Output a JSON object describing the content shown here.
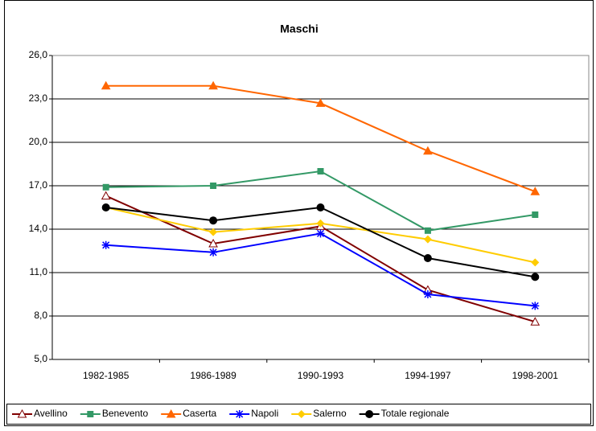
{
  "chart_data": {
    "type": "line",
    "title": "Maschi",
    "categories": [
      "1982-1985",
      "1986-1989",
      "1990-1993",
      "1994-1997",
      "1998-2001"
    ],
    "ylim": [
      5,
      26
    ],
    "yticks": [
      {
        "value": 5,
        "label": "5,0"
      },
      {
        "value": 8,
        "label": "8,0"
      },
      {
        "value": 11,
        "label": "11,0"
      },
      {
        "value": 14,
        "label": "14,0"
      },
      {
        "value": 17,
        "label": "17,0"
      },
      {
        "value": 20,
        "label": "20,0"
      },
      {
        "value": 23,
        "label": "23,0"
      },
      {
        "value": 26,
        "label": "26,0"
      }
    ],
    "grid": true,
    "legend": "bottom",
    "series": [
      {
        "name": "Avellino",
        "color": "#800000",
        "marker": "triangle-open",
        "values": [
          16.3,
          13.0,
          14.2,
          9.8,
          7.6
        ]
      },
      {
        "name": "Benevento",
        "color": "#339966",
        "marker": "square",
        "values": [
          16.9,
          17.0,
          18.0,
          13.9,
          15.0
        ]
      },
      {
        "name": "Caserta",
        "color": "#ff6600",
        "marker": "triangle",
        "values": [
          23.9,
          23.9,
          22.7,
          19.4,
          16.6
        ]
      },
      {
        "name": "Napoli",
        "color": "#0000ff",
        "marker": "star",
        "values": [
          12.9,
          12.4,
          13.7,
          9.5,
          8.7
        ]
      },
      {
        "name": "Salerno",
        "color": "#ffcc00",
        "marker": "diamond",
        "values": [
          15.5,
          13.8,
          14.4,
          13.3,
          11.7
        ]
      },
      {
        "name": "Totale regionale",
        "color": "#000000",
        "marker": "circle",
        "values": [
          15.5,
          14.6,
          15.5,
          12.0,
          10.7
        ]
      }
    ]
  }
}
